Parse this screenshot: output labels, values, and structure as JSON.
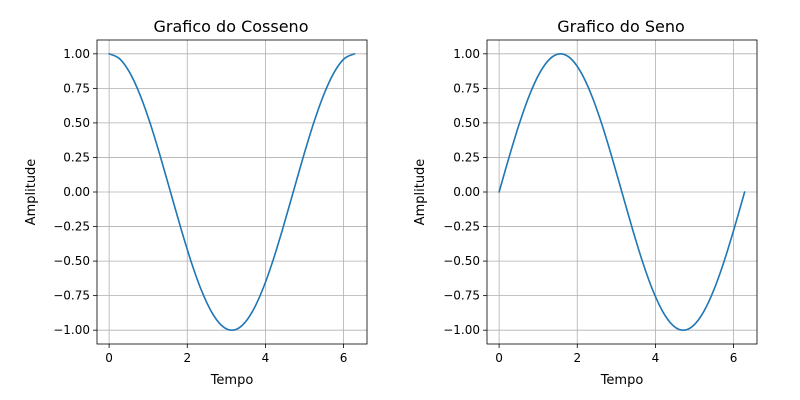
{
  "chart_data": [
    {
      "type": "line",
      "title": "Grafico do Cosseno",
      "xlabel": "Tempo",
      "ylabel": "Amplitude",
      "xlim": [
        -0.31,
        6.6
      ],
      "ylim": [
        -1.1,
        1.1
      ],
      "xticks": [
        0,
        2,
        4,
        6
      ],
      "yticks": [
        1.0,
        0.75,
        0.5,
        0.25,
        0.0,
        -0.25,
        -0.5,
        -0.75,
        -1.0
      ],
      "xtick_labels": [
        "0",
        "2",
        "4",
        "6"
      ],
      "ytick_labels": [
        "1.00",
        "0.75",
        "0.50",
        "0.25",
        "0.00",
        "−0.25",
        "−0.50",
        "−0.75",
        "−1.00"
      ],
      "grid": true,
      "series": [
        {
          "color": "#1f77b4",
          "x": [
            0,
            0.2618,
            0.5236,
            0.7854,
            1.0472,
            1.309,
            1.5708,
            1.8326,
            2.0944,
            2.3562,
            2.618,
            2.8798,
            3.1416,
            3.4034,
            3.6652,
            3.927,
            4.1888,
            4.4506,
            4.7124,
            4.9742,
            5.236,
            5.4978,
            5.7596,
            6.0214,
            6.2832
          ],
          "y": [
            1.0,
            0.9659,
            0.866,
            0.7071,
            0.5,
            0.2588,
            0.0,
            -0.2588,
            -0.5,
            -0.7071,
            -0.866,
            -0.9659,
            -1.0,
            -0.9659,
            -0.866,
            -0.7071,
            -0.5,
            -0.2588,
            0.0,
            0.2588,
            0.5,
            0.7071,
            0.866,
            0.9659,
            1.0
          ]
        }
      ]
    },
    {
      "type": "line",
      "title": "Grafico do Seno",
      "xlabel": "Tempo",
      "ylabel": "Amplitude",
      "xlim": [
        -0.31,
        6.6
      ],
      "ylim": [
        -1.1,
        1.1
      ],
      "xticks": [
        0,
        2,
        4,
        6
      ],
      "yticks": [
        1.0,
        0.75,
        0.5,
        0.25,
        0.0,
        -0.25,
        -0.5,
        -0.75,
        -1.0
      ],
      "xtick_labels": [
        "0",
        "2",
        "4",
        "6"
      ],
      "ytick_labels": [
        "1.00",
        "0.75",
        "0.50",
        "0.25",
        "0.00",
        "−0.25",
        "−0.50",
        "−0.75",
        "−1.00"
      ],
      "grid": true,
      "series": [
        {
          "color": "#1f77b4",
          "x": [
            0,
            0.2618,
            0.5236,
            0.7854,
            1.0472,
            1.309,
            1.5708,
            1.8326,
            2.0944,
            2.3562,
            2.618,
            2.8798,
            3.1416,
            3.4034,
            3.6652,
            3.927,
            4.1888,
            4.4506,
            4.7124,
            4.9742,
            5.236,
            5.4978,
            5.7596,
            6.0214,
            6.2832
          ],
          "y": [
            0.0,
            0.2588,
            0.5,
            0.7071,
            0.866,
            0.9659,
            1.0,
            0.9659,
            0.866,
            0.7071,
            0.5,
            0.2588,
            0.0,
            -0.2588,
            -0.5,
            -0.7071,
            -0.866,
            -0.9659,
            -1.0,
            -0.9659,
            -0.866,
            -0.7071,
            -0.5,
            -0.2588,
            0.0
          ]
        }
      ]
    }
  ]
}
